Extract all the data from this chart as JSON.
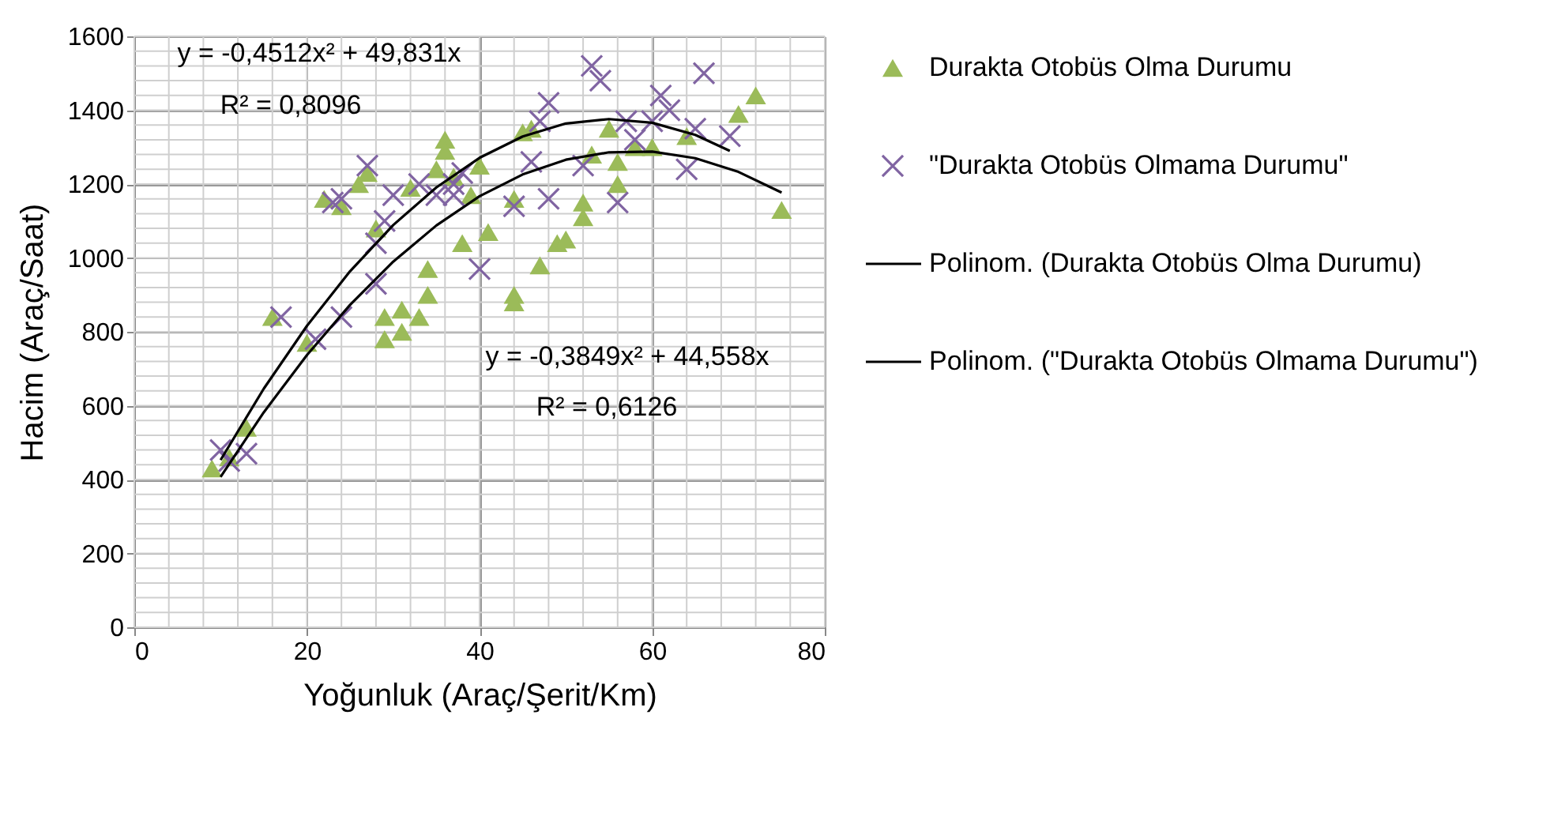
{
  "chart_data": {
    "type": "scatter",
    "xlabel": "Yoğunluk (Araç/Şerit/Km)",
    "ylabel": "Hacim  (Araç/Saat)",
    "xlim": [
      0,
      80
    ],
    "ylim": [
      0,
      1600
    ],
    "xticks": [
      0,
      20,
      40,
      60,
      80
    ],
    "yticks": [
      0,
      200,
      400,
      600,
      800,
      1000,
      1200,
      1400,
      1600
    ],
    "grid": true,
    "legend": "right",
    "series": [
      {
        "name": "Durakta Otobüs Olma Durumu",
        "color": "#9bbb59",
        "marker": "triangle",
        "x": [
          9,
          11,
          13,
          16,
          20,
          22,
          24,
          26,
          27,
          28,
          29,
          29,
          31,
          31,
          32,
          33,
          34,
          34,
          35,
          36,
          36,
          37,
          38,
          39,
          40,
          41,
          44,
          44,
          44,
          45,
          46,
          47,
          49,
          50,
          52,
          52,
          53,
          55,
          56,
          56,
          58,
          60,
          64,
          70,
          72,
          75
        ],
        "values": [
          430,
          460,
          540,
          840,
          770,
          1160,
          1140,
          1200,
          1230,
          1080,
          780,
          840,
          800,
          860,
          1190,
          840,
          900,
          970,
          1240,
          1320,
          1290,
          1220,
          1040,
          1170,
          1250,
          1070,
          1160,
          900,
          880,
          1340,
          1350,
          980,
          1040,
          1050,
          1110,
          1150,
          1280,
          1350,
          1200,
          1260,
          1300,
          1300,
          1330,
          1390,
          1440,
          1130
        ]
      },
      {
        "name": "\"Durakta Otobüs Olmama Durumu\"",
        "color": "#8064a2",
        "marker": "cross",
        "x": [
          10,
          11,
          13,
          17,
          21,
          23,
          24,
          24,
          27,
          28,
          28,
          29,
          30,
          33,
          35,
          37,
          37,
          38,
          40,
          44,
          46,
          47,
          48,
          48,
          52,
          53,
          54,
          56,
          57,
          58,
          60,
          61,
          62,
          64,
          65,
          66,
          69
        ],
        "values": [
          480,
          450,
          470,
          840,
          780,
          1150,
          1160,
          840,
          1250,
          930,
          1040,
          1100,
          1170,
          1200,
          1170,
          1200,
          1170,
          1230,
          970,
          1140,
          1260,
          1370,
          1420,
          1160,
          1250,
          1520,
          1480,
          1150,
          1370,
          1320,
          1370,
          1440,
          1400,
          1240,
          1350,
          1500,
          1330
        ]
      },
      {
        "name": "Polinom. (Durakta Otobüs Olma Durumu)",
        "type": "line",
        "color": "#000000",
        "marker": "none",
        "x": [
          10,
          15,
          20,
          25,
          30,
          35,
          40,
          45,
          50,
          55,
          60,
          65,
          70,
          75
        ],
        "values": [
          407,
          582,
          737,
          873,
          990,
          1088,
          1167,
          1226,
          1266,
          1286,
          1288,
          1270,
          1233,
          1177
        ]
      },
      {
        "name": "Polinom. (\"Durakta Otobüs Olmama Durumu\")",
        "type": "line",
        "color": "#000000",
        "marker": "none",
        "x": [
          10,
          15,
          20,
          25,
          30,
          35,
          40,
          45,
          50,
          55,
          60,
          65,
          69
        ],
        "values": [
          453,
          646,
          816,
          964,
          1089,
          1191,
          1271,
          1329,
          1364,
          1376,
          1366,
          1333,
          1290
        ]
      }
    ],
    "annotations": [
      "y = -0,4512x² + 49,831x",
      "R² = 0,8096",
      "y = -0,3849x² + 44,558x",
      "R² = 0,6126"
    ]
  }
}
